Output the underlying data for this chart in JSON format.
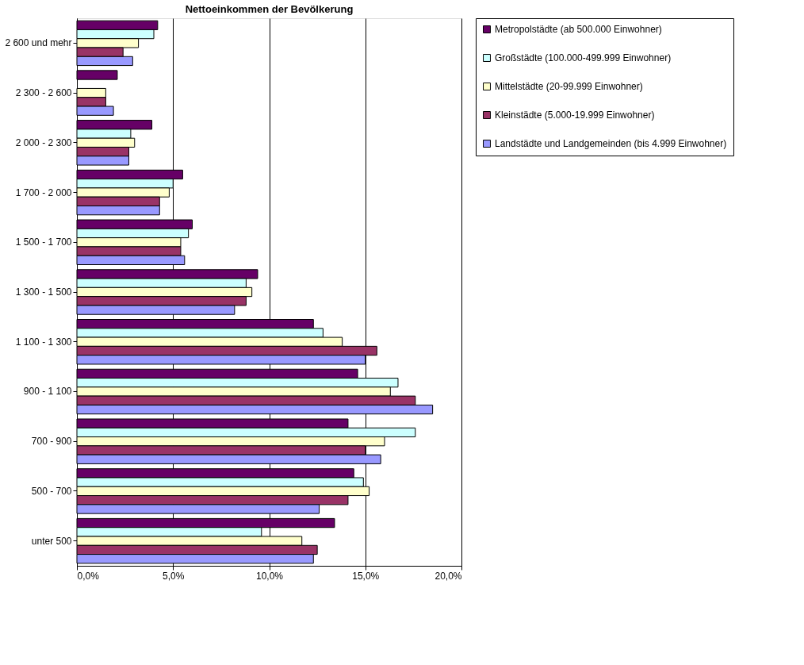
{
  "chart_data": {
    "type": "bar",
    "orientation": "horizontal",
    "title": "Nettoeinkommen der Bevölkerung",
    "categories": [
      "2 600 und mehr",
      "2 300 - 2 600",
      "2 000 - 2 300",
      "1 700 - 2 000",
      "1 500 - 1 700",
      "1 300 - 1 500",
      "1 100 - 1 300",
      "900 - 1 100",
      "700 - 900",
      "500 - 700",
      "unter 500"
    ],
    "series": [
      {
        "name": "Metropolstädte (ab 500.000 Einwohner)",
        "color": "#660066",
        "values": [
          4.2,
          2.1,
          3.9,
          5.5,
          6.0,
          9.4,
          12.3,
          14.6,
          14.1,
          14.4,
          13.4
        ]
      },
      {
        "name": "Großstädte (100.000-499.999 Einwohner)",
        "color": "#ccffff",
        "values": [
          4.0,
          null,
          2.8,
          5.0,
          5.8,
          8.8,
          12.8,
          16.7,
          17.6,
          14.9,
          9.6
        ]
      },
      {
        "name": "Mittelstädte (20-99.999 Einwohner)",
        "color": "#ffffcc",
        "values": [
          3.2,
          1.5,
          3.0,
          4.8,
          5.4,
          9.1,
          13.8,
          16.3,
          16.0,
          15.2,
          11.7
        ]
      },
      {
        "name": "Kleinstädte (5.000-19.999 Einwohner)",
        "color": "#993366",
        "values": [
          2.4,
          1.5,
          2.7,
          4.3,
          5.4,
          8.8,
          15.6,
          17.6,
          15.0,
          14.1,
          12.5
        ]
      },
      {
        "name": "Landstädte und Landgemeinden (bis 4.999 Einwohner)",
        "color": "#9999ff",
        "values": [
          2.9,
          1.9,
          2.7,
          4.3,
          5.6,
          8.2,
          15.0,
          18.5,
          15.8,
          12.6,
          12.3
        ]
      }
    ],
    "xlim": [
      0,
      20
    ],
    "xticks": [
      {
        "value": 0,
        "label": "0,0%"
      },
      {
        "value": 5,
        "label": "5,0%"
      },
      {
        "value": 10,
        "label": "10,0%"
      },
      {
        "value": 15,
        "label": "15,0%"
      },
      {
        "value": 20,
        "label": "20,0%"
      }
    ],
    "grid": "x",
    "legend": "right"
  }
}
